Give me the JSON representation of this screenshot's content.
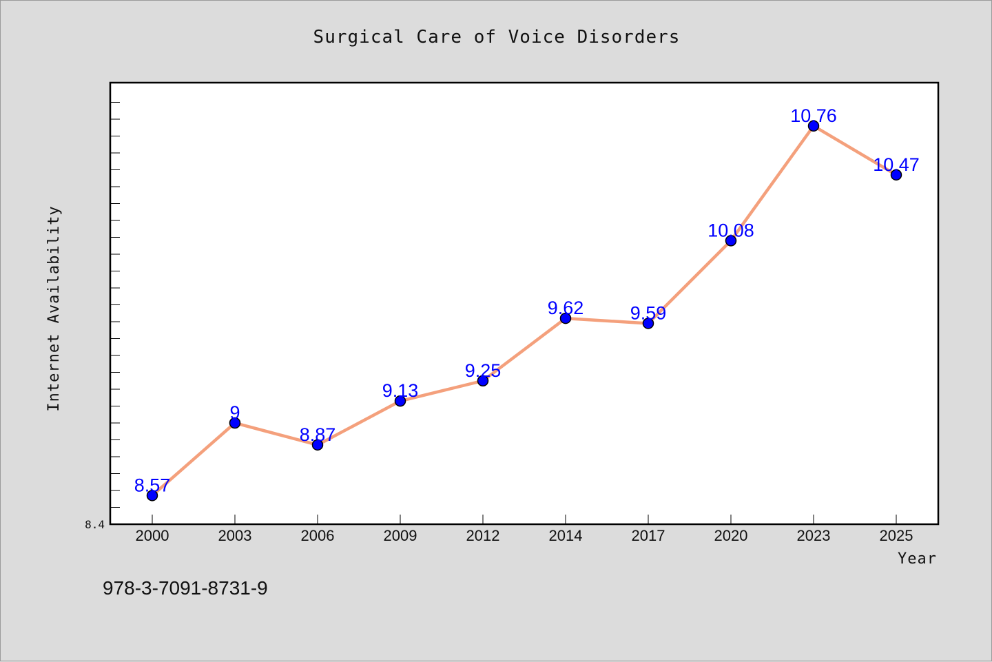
{
  "chart_data": {
    "type": "line",
    "title": "Surgical Care of Voice Disorders",
    "xlabel": "Year",
    "ylabel": "Internet Availability",
    "categories": [
      "2000",
      "2003",
      "2006",
      "2009",
      "2012",
      "2014",
      "2017",
      "2020",
      "2023",
      "2025"
    ],
    "series": [
      {
        "values": [
          8.57,
          9,
          8.87,
          9.13,
          9.25,
          9.62,
          9.59,
          10.08,
          10.76,
          10.47
        ],
        "data_labels": [
          "8.57",
          "9",
          "8.87",
          "9.13",
          "9.25",
          "9.62",
          "9.59",
          "10.08",
          "10.76",
          "10.47"
        ],
        "line_color": "#f4a07c",
        "marker_color": "#0000ff"
      }
    ],
    "ylim": [
      8.4,
      11.0
    ],
    "y_min_label": "8.4",
    "grid": false,
    "legend": "none",
    "footer_text": "978-3-7091-8731-9"
  }
}
